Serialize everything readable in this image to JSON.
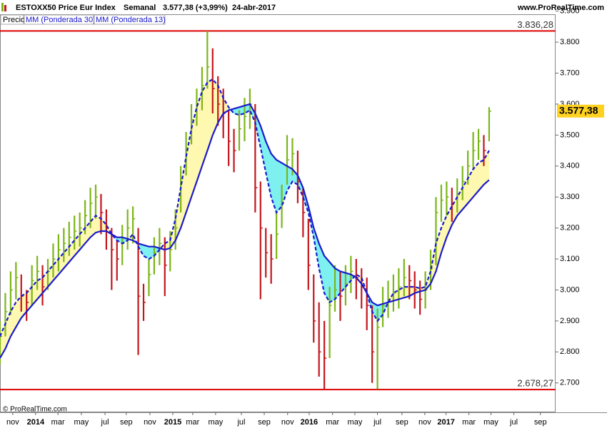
{
  "chart_data": {
    "type": "ohlc",
    "title": "ESTOXX50 Price Eur Index",
    "period": "Semanal",
    "last": "3.577,38 (+3,99%)",
    "date": "24-abr-2017",
    "source": "www.ProRealTime.com",
    "copyright": "© ProRealTime.com",
    "legend": [
      "Precio",
      "MM (Ponderada 30)",
      "MM (Ponderada 13)"
    ],
    "up_color": "#7cb518",
    "down_color": "#c4161c",
    "ma_color": "#1a1acc",
    "fill_above": "#fff8b0",
    "fill_below": "#7ff0f0",
    "xlim": [
      0,
      209
    ],
    "ylim": [
      2605,
      3890
    ],
    "x": [
      0,
      2,
      4,
      6,
      8,
      10,
      12,
      14,
      16,
      18,
      20,
      22,
      24,
      26,
      28,
      30,
      32,
      34,
      36,
      38,
      40,
      42,
      44,
      46,
      48,
      50,
      52,
      54,
      56,
      58,
      60,
      62,
      64,
      66,
      68,
      70,
      72,
      74,
      76,
      78,
      80,
      82,
      84,
      86,
      88,
      90,
      92,
      94,
      96,
      98,
      100,
      102,
      104,
      106,
      108,
      110,
      112,
      114,
      116,
      118,
      120,
      122,
      124,
      126,
      128,
      130,
      132,
      134,
      136,
      138,
      140,
      142,
      144,
      146,
      148,
      150,
      152,
      154,
      156,
      158,
      160,
      162,
      164,
      166,
      168,
      170,
      172,
      174,
      176,
      178,
      180,
      182,
      184
    ],
    "high": [
      2900,
      2990,
      3060,
      3090,
      3050,
      3000,
      3080,
      3110,
      3080,
      3100,
      3150,
      3180,
      3200,
      3220,
      3240,
      3250,
      3290,
      3330,
      3340,
      3310,
      3260,
      3200,
      3160,
      3210,
      3260,
      3270,
      3200,
      3020,
      3100,
      3170,
      3200,
      3170,
      3190,
      3260,
      3400,
      3510,
      3600,
      3650,
      3720,
      3836,
      3780,
      3690,
      3650,
      3580,
      3520,
      3580,
      3620,
      3650,
      3600,
      3350,
      3200,
      3180,
      3250,
      3340,
      3500,
      3490,
      3450,
      3330,
      3230,
      3050,
      2960,
      2900,
      3010,
      3080,
      3060,
      3080,
      3110,
      3100,
      3070,
      3040,
      2950,
      2940,
      3010,
      3030,
      3050,
      3070,
      3100,
      3080,
      3060,
      3030,
      3060,
      3130,
      3300,
      3340,
      3350,
      3330,
      3360,
      3400,
      3450,
      3510,
      3520,
      3500,
      3590
    ],
    "low": [
      2760,
      2850,
      2920,
      2970,
      2930,
      2900,
      2950,
      3000,
      2950,
      3000,
      3040,
      3060,
      3090,
      3110,
      3130,
      3140,
      3180,
      3200,
      3230,
      3180,
      3130,
      3000,
      3030,
      3080,
      3130,
      3150,
      2790,
      2900,
      2980,
      3050,
      3080,
      2980,
      3060,
      3130,
      3250,
      3370,
      3470,
      3530,
      3580,
      3650,
      3570,
      3530,
      3490,
      3400,
      3380,
      3450,
      3480,
      3520,
      3250,
      2970,
      3040,
      3020,
      3100,
      3200,
      3340,
      3370,
      3280,
      3170,
      3000,
      2830,
      2720,
      2678,
      2780,
      2930,
      2900,
      2950,
      2990,
      2970,
      2940,
      2870,
      2700,
      2680,
      2880,
      2910,
      2930,
      2940,
      2980,
      2970,
      2940,
      2920,
      2940,
      3000,
      3080,
      3220,
      3240,
      3220,
      3250,
      3290,
      3340,
      3390,
      3420,
      3400,
      3480
    ],
    "close": [
      2850,
      2930,
      3000,
      3040,
      2980,
      2960,
      3030,
      3060,
      3010,
      3060,
      3100,
      3130,
      3150,
      3170,
      3190,
      3200,
      3240,
      3280,
      3300,
      3250,
      3200,
      3130,
      3100,
      3150,
      3200,
      3230,
      2980,
      2960,
      3050,
      3120,
      3150,
      3080,
      3130,
      3200,
      3350,
      3450,
      3550,
      3600,
      3660,
      3720,
      3650,
      3600,
      3570,
      3480,
      3450,
      3520,
      3560,
      3600,
      3330,
      3200,
      3120,
      3100,
      3180,
      3280,
      3420,
      3440,
      3350,
      3250,
      3080,
      2900,
      2800,
      2780,
      2950,
      3000,
      2980,
      3020,
      3060,
      3040,
      3010,
      2950,
      2800,
      2880,
      2950,
      2970,
      2990,
      3010,
      3040,
      3030,
      3000,
      2970,
      3000,
      3070,
      3250,
      3290,
      3300,
      3280,
      3310,
      3350,
      3400,
      3450,
      3480,
      3450,
      3577
    ],
    "ma30": [
      2780,
      2810,
      2850,
      2880,
      2910,
      2930,
      2950,
      2970,
      2990,
      3010,
      3030,
      3050,
      3070,
      3090,
      3110,
      3130,
      3150,
      3170,
      3185,
      3190,
      3190,
      3180,
      3170,
      3170,
      3165,
      3160,
      3150,
      3145,
      3140,
      3140,
      3135,
      3130,
      3135,
      3160,
      3200,
      3250,
      3300,
      3350,
      3400,
      3450,
      3500,
      3540,
      3570,
      3580,
      3585,
      3590,
      3595,
      3600,
      3570,
      3530,
      3480,
      3440,
      3420,
      3410,
      3400,
      3390,
      3370,
      3330,
      3270,
      3200,
      3150,
      3110,
      3090,
      3070,
      3060,
      3055,
      3050,
      3040,
      3020,
      2990,
      2960,
      2950,
      2955,
      2960,
      2965,
      2970,
      2975,
      2980,
      2990,
      2995,
      3000,
      3020,
      3060,
      3120,
      3170,
      3210,
      3240,
      3260,
      3280,
      3300,
      3320,
      3340,
      3355
    ],
    "ma13": [
      2850,
      2890,
      2930,
      2960,
      2980,
      2990,
      3010,
      3030,
      3040,
      3060,
      3080,
      3100,
      3120,
      3140,
      3160,
      3180,
      3200,
      3220,
      3240,
      3230,
      3210,
      3180,
      3160,
      3150,
      3160,
      3180,
      3140,
      3110,
      3100,
      3110,
      3130,
      3150,
      3160,
      3230,
      3330,
      3430,
      3520,
      3590,
      3640,
      3670,
      3680,
      3660,
      3620,
      3590,
      3570,
      3565,
      3570,
      3580,
      3540,
      3460,
      3380,
      3300,
      3250,
      3270,
      3320,
      3350,
      3340,
      3300,
      3250,
      3170,
      3070,
      2990,
      2960,
      2970,
      2990,
      3010,
      3030,
      3050,
      3040,
      2990,
      2930,
      2900,
      2920,
      2960,
      2990,
      3000,
      3010,
      3010,
      3010,
      3005,
      3010,
      3060,
      3150,
      3200,
      3240,
      3270,
      3300,
      3330,
      3360,
      3390,
      3410,
      3420,
      3450
    ],
    "levels": [
      {
        "value": 3836.28,
        "label": "3.836,28"
      },
      {
        "value": 2678.27,
        "label": "2.678,27"
      }
    ],
    "last_price": {
      "value": 3577.38,
      "label": "3.577,38"
    },
    "yticks": [
      {
        "value": 3900,
        "label": "3.900"
      },
      {
        "value": 3800,
        "label": "3.800"
      },
      {
        "value": 3700,
        "label": "3.700"
      },
      {
        "value": 3600,
        "label": "3.600"
      },
      {
        "value": 3500,
        "label": "3.500"
      },
      {
        "value": 3400,
        "label": "3.400"
      },
      {
        "value": 3300,
        "label": "3.300"
      },
      {
        "value": 3200,
        "label": "3.200"
      },
      {
        "value": 3100,
        "label": "3.100"
      },
      {
        "value": 3000,
        "label": "3.000"
      },
      {
        "value": 2900,
        "label": "2.900"
      },
      {
        "value": 2800,
        "label": "2.800"
      },
      {
        "value": 2700,
        "label": "2.700"
      }
    ],
    "xticks": [
      {
        "value": 4.8,
        "label": "nov"
      },
      {
        "value": 13.4,
        "label": "2014"
      },
      {
        "value": 21.8,
        "label": "mar"
      },
      {
        "value": 30.6,
        "label": "may"
      },
      {
        "value": 39.5,
        "label": "jul"
      },
      {
        "value": 47.5,
        "label": "sep"
      },
      {
        "value": 56.4,
        "label": "nov"
      },
      {
        "value": 65,
        "label": "2015"
      },
      {
        "value": 72.5,
        "label": "mar"
      },
      {
        "value": 81.1,
        "label": "may"
      },
      {
        "value": 90.8,
        "label": "jul"
      },
      {
        "value": 99.4,
        "label": "sep"
      },
      {
        "value": 108.2,
        "label": "nov"
      },
      {
        "value": 116.3,
        "label": "2016"
      },
      {
        "value": 125.1,
        "label": "mar"
      },
      {
        "value": 133.5,
        "label": "may"
      },
      {
        "value": 142,
        "label": "jul"
      },
      {
        "value": 151.2,
        "label": "sep"
      },
      {
        "value": 159.8,
        "label": "nov"
      },
      {
        "value": 167.8,
        "label": "2017"
      },
      {
        "value": 176.4,
        "label": "mar"
      },
      {
        "value": 184.7,
        "label": "may"
      },
      {
        "value": 193.3,
        "label": "jul"
      },
      {
        "value": 203.3,
        "label": "sep"
      }
    ]
  }
}
